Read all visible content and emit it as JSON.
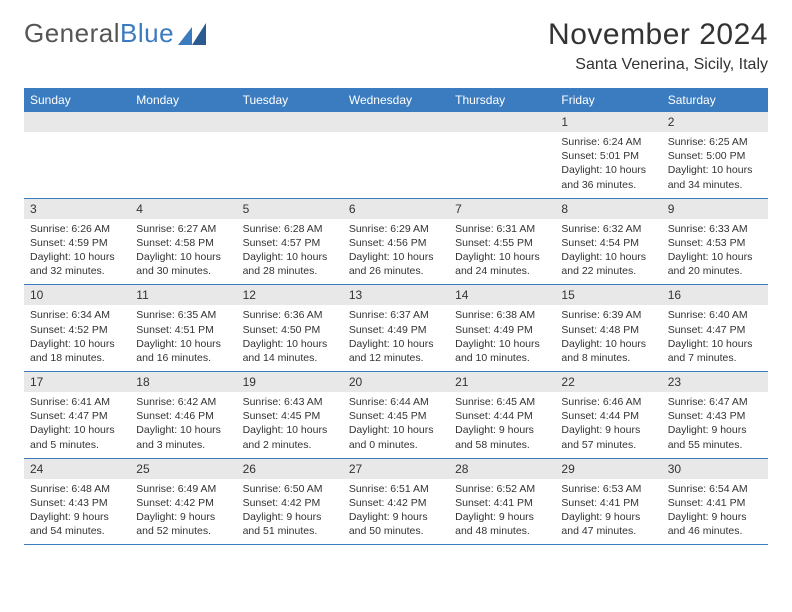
{
  "logo": {
    "text1": "General",
    "text2": "Blue"
  },
  "colors": {
    "headerBg": "#3b7bbf",
    "dayBg": "#e8e8e8",
    "border": "#3b7bbf",
    "text": "#333333",
    "logoGray": "#555555",
    "logoBlue": "#3b7bbf"
  },
  "title": "November 2024",
  "location": "Santa Venerina, Sicily, Italy",
  "weekdays": [
    "Sunday",
    "Monday",
    "Tuesday",
    "Wednesday",
    "Thursday",
    "Friday",
    "Saturday"
  ],
  "layout": {
    "cols": 7,
    "rows": 5,
    "cell_font_size": 10.5,
    "header_font_size": 12,
    "title_font_size": 30,
    "location_font_size": 16
  },
  "weeks": [
    [
      {
        "day": "",
        "sunrise": "",
        "sunset": "",
        "daylight": ""
      },
      {
        "day": "",
        "sunrise": "",
        "sunset": "",
        "daylight": ""
      },
      {
        "day": "",
        "sunrise": "",
        "sunset": "",
        "daylight": ""
      },
      {
        "day": "",
        "sunrise": "",
        "sunset": "",
        "daylight": ""
      },
      {
        "day": "",
        "sunrise": "",
        "sunset": "",
        "daylight": ""
      },
      {
        "day": "1",
        "sunrise": "Sunrise: 6:24 AM",
        "sunset": "Sunset: 5:01 PM",
        "daylight": "Daylight: 10 hours and 36 minutes."
      },
      {
        "day": "2",
        "sunrise": "Sunrise: 6:25 AM",
        "sunset": "Sunset: 5:00 PM",
        "daylight": "Daylight: 10 hours and 34 minutes."
      }
    ],
    [
      {
        "day": "3",
        "sunrise": "Sunrise: 6:26 AM",
        "sunset": "Sunset: 4:59 PM",
        "daylight": "Daylight: 10 hours and 32 minutes."
      },
      {
        "day": "4",
        "sunrise": "Sunrise: 6:27 AM",
        "sunset": "Sunset: 4:58 PM",
        "daylight": "Daylight: 10 hours and 30 minutes."
      },
      {
        "day": "5",
        "sunrise": "Sunrise: 6:28 AM",
        "sunset": "Sunset: 4:57 PM",
        "daylight": "Daylight: 10 hours and 28 minutes."
      },
      {
        "day": "6",
        "sunrise": "Sunrise: 6:29 AM",
        "sunset": "Sunset: 4:56 PM",
        "daylight": "Daylight: 10 hours and 26 minutes."
      },
      {
        "day": "7",
        "sunrise": "Sunrise: 6:31 AM",
        "sunset": "Sunset: 4:55 PM",
        "daylight": "Daylight: 10 hours and 24 minutes."
      },
      {
        "day": "8",
        "sunrise": "Sunrise: 6:32 AM",
        "sunset": "Sunset: 4:54 PM",
        "daylight": "Daylight: 10 hours and 22 minutes."
      },
      {
        "day": "9",
        "sunrise": "Sunrise: 6:33 AM",
        "sunset": "Sunset: 4:53 PM",
        "daylight": "Daylight: 10 hours and 20 minutes."
      }
    ],
    [
      {
        "day": "10",
        "sunrise": "Sunrise: 6:34 AM",
        "sunset": "Sunset: 4:52 PM",
        "daylight": "Daylight: 10 hours and 18 minutes."
      },
      {
        "day": "11",
        "sunrise": "Sunrise: 6:35 AM",
        "sunset": "Sunset: 4:51 PM",
        "daylight": "Daylight: 10 hours and 16 minutes."
      },
      {
        "day": "12",
        "sunrise": "Sunrise: 6:36 AM",
        "sunset": "Sunset: 4:50 PM",
        "daylight": "Daylight: 10 hours and 14 minutes."
      },
      {
        "day": "13",
        "sunrise": "Sunrise: 6:37 AM",
        "sunset": "Sunset: 4:49 PM",
        "daylight": "Daylight: 10 hours and 12 minutes."
      },
      {
        "day": "14",
        "sunrise": "Sunrise: 6:38 AM",
        "sunset": "Sunset: 4:49 PM",
        "daylight": "Daylight: 10 hours and 10 minutes."
      },
      {
        "day": "15",
        "sunrise": "Sunrise: 6:39 AM",
        "sunset": "Sunset: 4:48 PM",
        "daylight": "Daylight: 10 hours and 8 minutes."
      },
      {
        "day": "16",
        "sunrise": "Sunrise: 6:40 AM",
        "sunset": "Sunset: 4:47 PM",
        "daylight": "Daylight: 10 hours and 7 minutes."
      }
    ],
    [
      {
        "day": "17",
        "sunrise": "Sunrise: 6:41 AM",
        "sunset": "Sunset: 4:47 PM",
        "daylight": "Daylight: 10 hours and 5 minutes."
      },
      {
        "day": "18",
        "sunrise": "Sunrise: 6:42 AM",
        "sunset": "Sunset: 4:46 PM",
        "daylight": "Daylight: 10 hours and 3 minutes."
      },
      {
        "day": "19",
        "sunrise": "Sunrise: 6:43 AM",
        "sunset": "Sunset: 4:45 PM",
        "daylight": "Daylight: 10 hours and 2 minutes."
      },
      {
        "day": "20",
        "sunrise": "Sunrise: 6:44 AM",
        "sunset": "Sunset: 4:45 PM",
        "daylight": "Daylight: 10 hours and 0 minutes."
      },
      {
        "day": "21",
        "sunrise": "Sunrise: 6:45 AM",
        "sunset": "Sunset: 4:44 PM",
        "daylight": "Daylight: 9 hours and 58 minutes."
      },
      {
        "day": "22",
        "sunrise": "Sunrise: 6:46 AM",
        "sunset": "Sunset: 4:44 PM",
        "daylight": "Daylight: 9 hours and 57 minutes."
      },
      {
        "day": "23",
        "sunrise": "Sunrise: 6:47 AM",
        "sunset": "Sunset: 4:43 PM",
        "daylight": "Daylight: 9 hours and 55 minutes."
      }
    ],
    [
      {
        "day": "24",
        "sunrise": "Sunrise: 6:48 AM",
        "sunset": "Sunset: 4:43 PM",
        "daylight": "Daylight: 9 hours and 54 minutes."
      },
      {
        "day": "25",
        "sunrise": "Sunrise: 6:49 AM",
        "sunset": "Sunset: 4:42 PM",
        "daylight": "Daylight: 9 hours and 52 minutes."
      },
      {
        "day": "26",
        "sunrise": "Sunrise: 6:50 AM",
        "sunset": "Sunset: 4:42 PM",
        "daylight": "Daylight: 9 hours and 51 minutes."
      },
      {
        "day": "27",
        "sunrise": "Sunrise: 6:51 AM",
        "sunset": "Sunset: 4:42 PM",
        "daylight": "Daylight: 9 hours and 50 minutes."
      },
      {
        "day": "28",
        "sunrise": "Sunrise: 6:52 AM",
        "sunset": "Sunset: 4:41 PM",
        "daylight": "Daylight: 9 hours and 48 minutes."
      },
      {
        "day": "29",
        "sunrise": "Sunrise: 6:53 AM",
        "sunset": "Sunset: 4:41 PM",
        "daylight": "Daylight: 9 hours and 47 minutes."
      },
      {
        "day": "30",
        "sunrise": "Sunrise: 6:54 AM",
        "sunset": "Sunset: 4:41 PM",
        "daylight": "Daylight: 9 hours and 46 minutes."
      }
    ]
  ]
}
